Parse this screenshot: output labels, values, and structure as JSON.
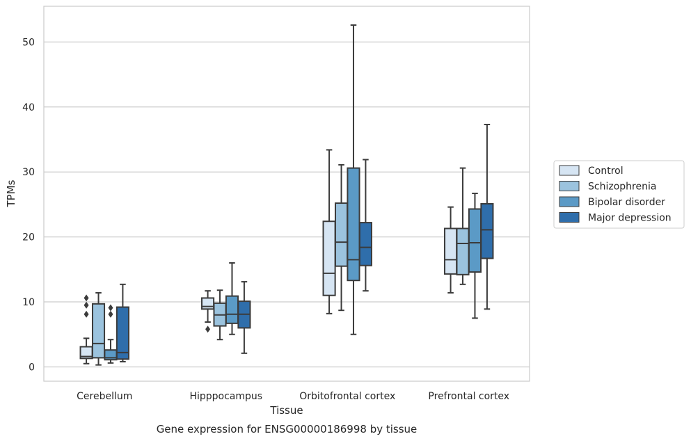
{
  "chart_data": {
    "type": "box",
    "xlabel": "Tissue",
    "ylabel": "TPMs",
    "caption": "Gene expression for ENSG00000186998 by tissue",
    "ylim": [
      -2.2,
      55.5
    ],
    "yticks": [
      0,
      10,
      20,
      30,
      40,
      50
    ],
    "grid": true,
    "legend_position": "right",
    "categories": [
      "Cerebellum",
      "Hipppocampus",
      "Orbitofrontal cortex",
      "Prefrontal cortex"
    ],
    "series": [
      {
        "name": "Control",
        "color": "#d6e5f3",
        "boxes": [
          {
            "whislo": 0.5,
            "q1": 1.3,
            "med": 1.6,
            "q3": 3.1,
            "whishi": 4.4,
            "fliers": [
              8.1,
              9.5,
              10.6
            ]
          },
          {
            "whislo": 6.9,
            "q1": 8.9,
            "med": 9.3,
            "q3": 10.6,
            "whishi": 11.7,
            "fliers": [
              5.8
            ]
          },
          {
            "whislo": 8.2,
            "q1": 11.0,
            "med": 14.4,
            "q3": 22.4,
            "whishi": 33.4,
            "fliers": []
          },
          {
            "whislo": 11.4,
            "q1": 14.3,
            "med": 16.5,
            "q3": 21.3,
            "whishi": 24.6,
            "fliers": []
          }
        ]
      },
      {
        "name": "Schizophrenia",
        "color": "#9bc3de",
        "boxes": [
          {
            "whislo": 0.3,
            "q1": 1.4,
            "med": 3.6,
            "q3": 9.7,
            "whishi": 11.4,
            "fliers": []
          },
          {
            "whislo": 4.2,
            "q1": 6.3,
            "med": 8.0,
            "q3": 9.8,
            "whishi": 11.8,
            "fliers": []
          },
          {
            "whislo": 8.7,
            "q1": 15.5,
            "med": 19.2,
            "q3": 25.2,
            "whishi": 31.1,
            "fliers": []
          },
          {
            "whislo": 12.7,
            "q1": 14.2,
            "med": 19.0,
            "q3": 21.3,
            "whishi": 30.6,
            "fliers": []
          }
        ]
      },
      {
        "name": "Bipolar disorder",
        "color": "#5b9ac6",
        "boxes": [
          {
            "whislo": 0.6,
            "q1": 1.1,
            "med": 1.4,
            "q3": 2.6,
            "whishi": 4.2,
            "fliers": [
              8.1,
              9.1
            ]
          },
          {
            "whislo": 5.0,
            "q1": 6.7,
            "med": 8.1,
            "q3": 10.9,
            "whishi": 16.0,
            "fliers": []
          },
          {
            "whislo": 5.0,
            "q1": 13.3,
            "med": 16.5,
            "q3": 30.6,
            "whishi": 52.6,
            "fliers": []
          },
          {
            "whislo": 7.5,
            "q1": 14.6,
            "med": 19.1,
            "q3": 24.3,
            "whishi": 26.7,
            "fliers": []
          }
        ]
      },
      {
        "name": "Major depression",
        "color": "#2f6eab",
        "boxes": [
          {
            "whislo": 0.8,
            "q1": 1.2,
            "med": 2.2,
            "q3": 9.2,
            "whishi": 12.7,
            "fliers": []
          },
          {
            "whislo": 2.1,
            "q1": 6.0,
            "med": 8.1,
            "q3": 10.1,
            "whishi": 13.1,
            "fliers": []
          },
          {
            "whislo": 11.7,
            "q1": 15.6,
            "med": 18.4,
            "q3": 22.2,
            "whishi": 31.9,
            "fliers": []
          },
          {
            "whislo": 8.9,
            "q1": 16.7,
            "med": 21.1,
            "q3": 25.1,
            "whishi": 37.3,
            "fliers": []
          }
        ]
      }
    ]
  }
}
